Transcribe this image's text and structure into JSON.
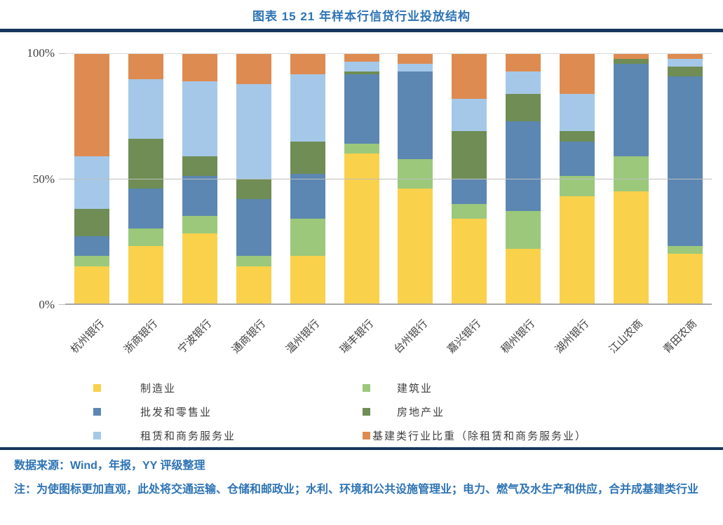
{
  "title": "图表 15 21 年样本行信贷行业投放结构",
  "colors": {
    "accent_text": "#2E74B5",
    "divider": "#17375E",
    "gridline": "#BFBFBF",
    "axis_line": "#A6A6A6",
    "label_text": "#3F3F3F"
  },
  "chart_data": {
    "type": "bar",
    "variant": "stacked-100-percent",
    "title": "图表 15 21 年样本行信贷行业投放结构",
    "xlabel": "",
    "ylabel": "",
    "ylim": [
      0,
      100
    ],
    "yticks": [
      "0%",
      "50%",
      "100%"
    ],
    "grid": "horizontal lines at 50% and 100%",
    "legend_position": "bottom, two columns",
    "unit": "%",
    "categories": [
      "杭州银行",
      "浙商银行",
      "宁波银行",
      "通商银行",
      "温州银行",
      "瑞丰银行",
      "台州银行",
      "嘉兴银行",
      "稠州银行",
      "湖州银行",
      "江山农商",
      "青田农商"
    ],
    "series": [
      {
        "name": "制造业",
        "color": "#FAD14B",
        "values": [
          15,
          23,
          28,
          15,
          19,
          60,
          46,
          34,
          22,
          43,
          45,
          20
        ]
      },
      {
        "name": "建筑业",
        "color": "#9BC87B",
        "values": [
          4,
          7,
          7,
          4,
          15,
          4,
          12,
          6,
          15,
          8,
          14,
          3
        ]
      },
      {
        "name": "批发和零售业",
        "color": "#5C87B2",
        "values": [
          8,
          16,
          16,
          23,
          18,
          28,
          35,
          10,
          36,
          14,
          37,
          68
        ]
      },
      {
        "name": "房地产业",
        "color": "#6F8D54",
        "values": [
          11,
          20,
          8,
          8,
          13,
          1,
          0,
          19,
          11,
          4,
          2,
          4
        ]
      },
      {
        "name": "租赁和商务服务业",
        "color": "#A5C8E9",
        "values": [
          21,
          24,
          30,
          38,
          27,
          4,
          3,
          13,
          9,
          15,
          0,
          3
        ]
      },
      {
        "name": "基建类行业比重（除租赁和商务服务业）",
        "color": "#DE8B51",
        "values": [
          41,
          10,
          11,
          12,
          8,
          3,
          4,
          18,
          7,
          16,
          2,
          2
        ]
      }
    ]
  },
  "legend": {
    "column1_series": [
      0,
      2,
      4
    ],
    "column2_series": [
      1,
      3,
      5
    ]
  },
  "footer": {
    "source": "数据来源：Wind，年报，YY 评级整理",
    "note": "注：为使图标更加直观，此处将交通运输、仓储和邮政业；水利、环境和公共设施管理业；电力、燃气及水生产和供应，合并成基建类行业"
  }
}
